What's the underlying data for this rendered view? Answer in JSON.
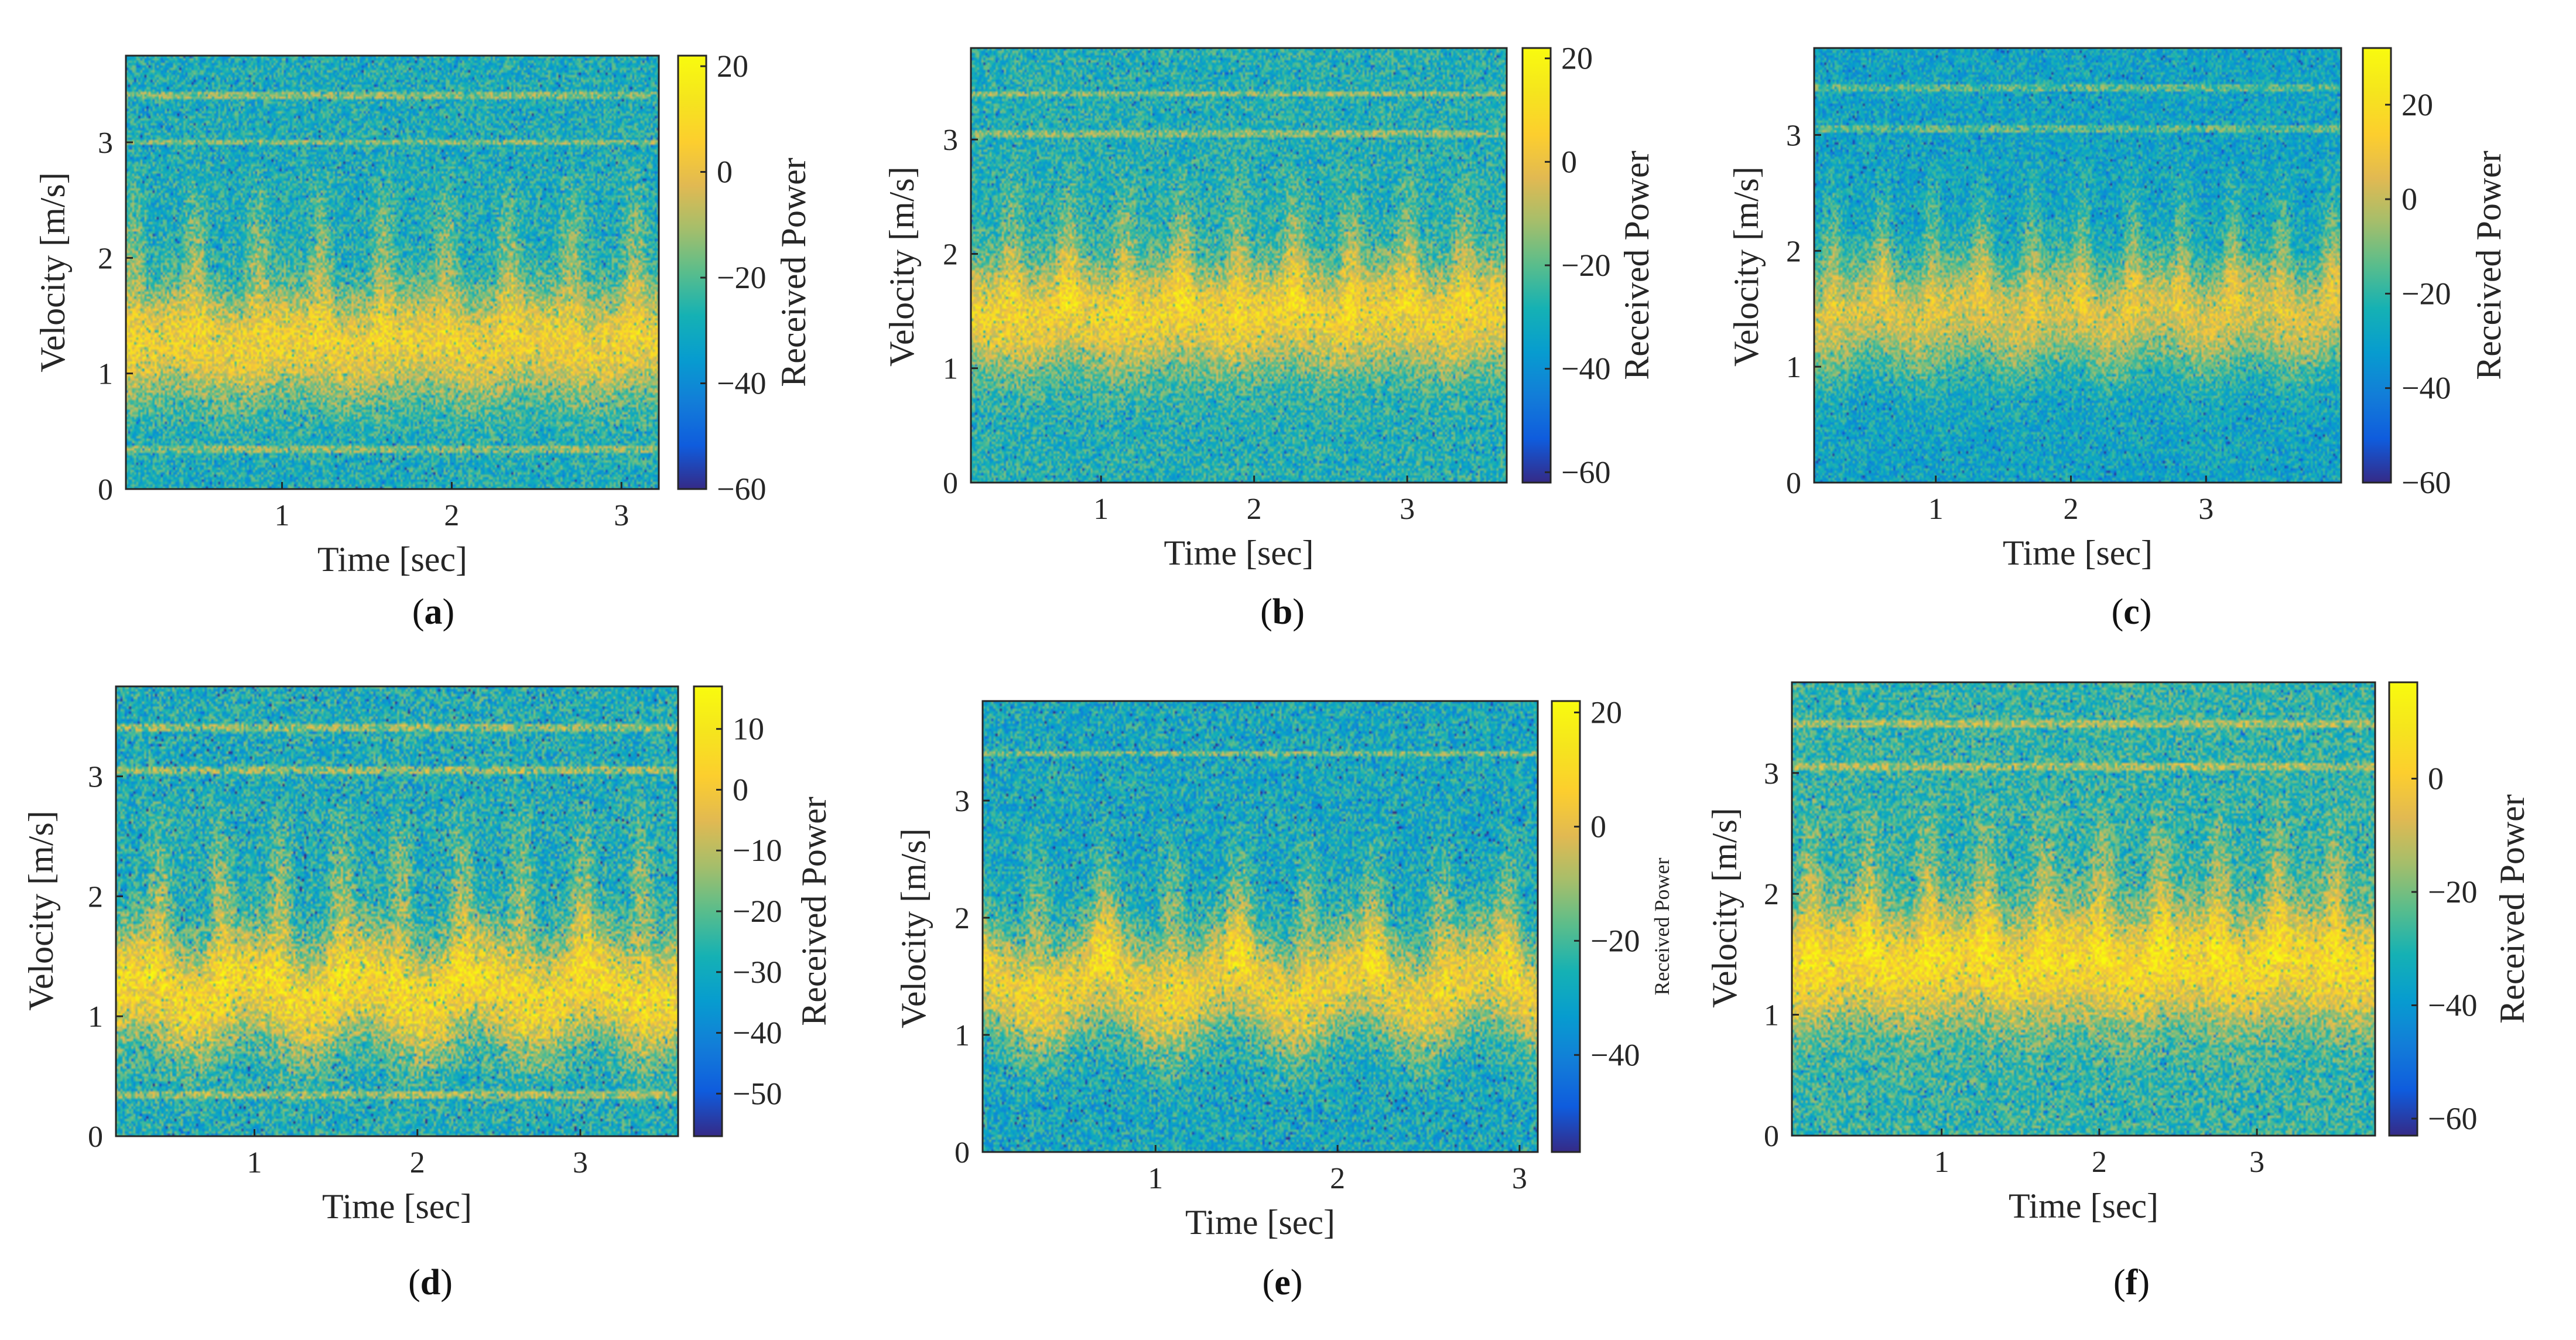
{
  "colors": {
    "axis": "#262626",
    "frame": "#262626"
  },
  "chart_data": [
    {
      "type": "heatmap",
      "panel_label": "a",
      "xlabel": "Time [sec]",
      "ylabel": "Velocity [m/s]",
      "colorbar_label": "Received Power",
      "xlim": [
        0.08,
        3.22
      ],
      "ylim": [
        0,
        3.75
      ],
      "xticks": [
        1,
        2,
        3
      ],
      "yticks": [
        0,
        1,
        2,
        3
      ],
      "clim": [
        -60,
        22
      ],
      "cticks": [
        -60,
        -40,
        -20,
        0,
        20
      ],
      "cticklabels": [
        "−60",
        "−40",
        "−20",
        "0",
        "20"
      ],
      "ridge_velocity": 1.25,
      "ridge_amplitude": 0.05,
      "horizontal_lines": [
        3.4,
        3.0,
        0.35
      ],
      "colormap": "parula"
    },
    {
      "type": "heatmap",
      "panel_label": "b",
      "xlabel": "Time [sec]",
      "ylabel": "Velocity [m/s]",
      "colorbar_label": "Received Power",
      "xlim": [
        0.15,
        3.65
      ],
      "ylim": [
        0,
        3.8
      ],
      "xticks": [
        1,
        2,
        3
      ],
      "yticks": [
        0,
        1,
        2,
        3
      ],
      "clim": [
        -62,
        22
      ],
      "cticks": [
        -60,
        -40,
        -20,
        0,
        20
      ],
      "cticklabels": [
        "−60",
        "−40",
        "−20",
        "0",
        "20"
      ],
      "ridge_velocity": 1.45,
      "ridge_amplitude": 0.05,
      "horizontal_lines": [
        3.4,
        3.05
      ],
      "colormap": "parula"
    },
    {
      "type": "heatmap",
      "panel_label": "c",
      "xlabel": "Time [sec]",
      "ylabel": "Velocity [m/s]",
      "colorbar_label": "Received Power",
      "xlim": [
        0.1,
        4.0
      ],
      "ylim": [
        0,
        3.75
      ],
      "xticks": [
        1,
        2,
        3
      ],
      "yticks": [
        0,
        1,
        2,
        3
      ],
      "clim": [
        -60,
        32
      ],
      "cticks": [
        -60,
        -40,
        -20,
        0,
        20
      ],
      "cticklabels": [
        "−60",
        "−40",
        "−20",
        "0",
        "20"
      ],
      "ridge_velocity": 1.45,
      "ridge_amplitude": 0.08,
      "horizontal_lines": [
        3.4,
        3.05
      ],
      "colormap": "parula"
    },
    {
      "type": "heatmap",
      "panel_label": "d",
      "xlabel": "Time [sec]",
      "ylabel": "Velocity [m/s]",
      "colorbar_label": "Received Power",
      "xlim": [
        0.15,
        3.6
      ],
      "ylim": [
        0,
        3.75
      ],
      "xticks": [
        1,
        2,
        3
      ],
      "yticks": [
        0,
        1,
        2,
        3
      ],
      "clim": [
        -57,
        17
      ],
      "cticks": [
        -50,
        -40,
        -30,
        -20,
        -10,
        0,
        10
      ],
      "cticklabels": [
        "−50",
        "−40",
        "−30",
        "−20",
        "−10",
        "0",
        "10"
      ],
      "ridge_velocity": 1.2,
      "ridge_amplitude": 0.12,
      "horizontal_lines": [
        3.4,
        3.05,
        0.35
      ],
      "colormap": "parula"
    },
    {
      "type": "heatmap",
      "panel_label": "e",
      "xlabel": "Time [sec]",
      "ylabel": "Velocity [m/s]",
      "colorbar_label": "Received Power",
      "xlim": [
        0.05,
        3.1
      ],
      "ylim": [
        0,
        3.85
      ],
      "xticks": [
        1,
        2,
        3
      ],
      "yticks": [
        0,
        1,
        2,
        3
      ],
      "clim": [
        -57,
        22
      ],
      "cticks": [
        -40,
        -20,
        0,
        20
      ],
      "cticklabels": [
        "−40",
        "−20",
        "0",
        "20"
      ],
      "ridge_velocity": 1.4,
      "ridge_amplitude": 0.15,
      "horizontal_lines": [
        3.4
      ],
      "colormap": "parula"
    },
    {
      "type": "heatmap",
      "panel_label": "f",
      "xlabel": "Time [sec]",
      "ylabel": "Velocity [m/s]",
      "colorbar_label": "Received Power",
      "xlim": [
        0.05,
        3.75
      ],
      "ylim": [
        0,
        3.75
      ],
      "xticks": [
        1,
        2,
        3
      ],
      "yticks": [
        0,
        1,
        2,
        3
      ],
      "clim": [
        -63,
        17
      ],
      "cticks": [
        -60,
        -40,
        -20,
        0
      ],
      "cticklabels": [
        "−60",
        "−40",
        "−20",
        "0"
      ],
      "ridge_velocity": 1.4,
      "ridge_amplitude": 0.05,
      "horizontal_lines": [
        3.4,
        3.05
      ],
      "colormap": "parula"
    }
  ]
}
